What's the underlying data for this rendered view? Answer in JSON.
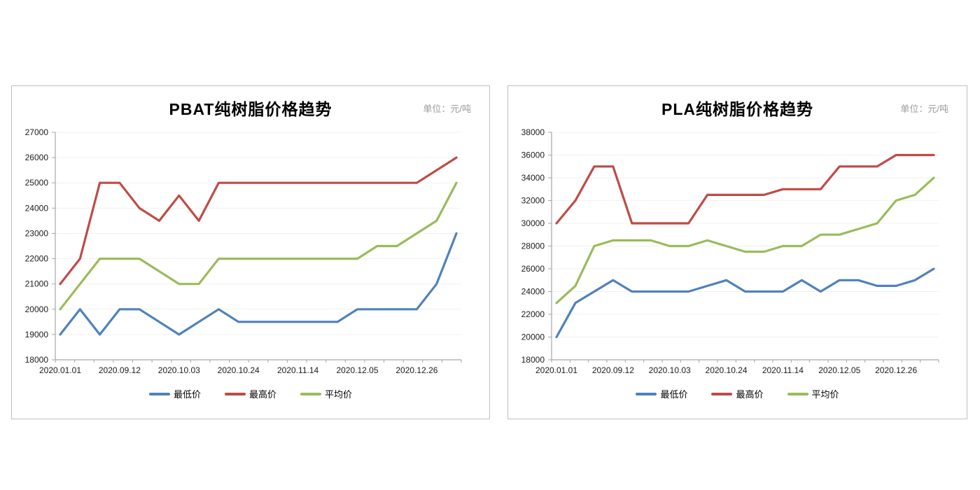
{
  "page": {
    "background_color": "#ffffff",
    "panel_border_color": "#bfbfbf"
  },
  "chart_data": [
    {
      "type": "line",
      "title": "PBAT纯树脂价格趋势",
      "unit_label": "单位：元/吨",
      "ylim": [
        18000,
        27000
      ],
      "ytick_step": 1000,
      "n_points": 21,
      "x_label_every_n_points": 3,
      "x_tick_labels": [
        "2020.01.01",
        "2020.09.12",
        "2020.10.03",
        "2020.10.24",
        "2020.11.14",
        "2020.12.05",
        "2020.12.26"
      ],
      "grid": true,
      "legend_position": "bottom",
      "series": [
        {
          "name": "最低价",
          "color": "#4f81bd",
          "values": [
            19000,
            20000,
            19000,
            20000,
            20000,
            19500,
            19000,
            19500,
            20000,
            19500,
            19500,
            19500,
            19500,
            19500,
            19500,
            20000,
            20000,
            20000,
            20000,
            21000,
            23000
          ]
        },
        {
          "name": "最高价",
          "color": "#be4b48",
          "values": [
            21000,
            22000,
            25000,
            25000,
            24000,
            23500,
            24500,
            23500,
            25000,
            25000,
            25000,
            25000,
            25000,
            25000,
            25000,
            25000,
            25000,
            25000,
            25000,
            25500,
            26000
          ]
        },
        {
          "name": "平均价",
          "color": "#9bbb59",
          "values": [
            20000,
            21000,
            22000,
            22000,
            22000,
            21500,
            21000,
            21000,
            22000,
            22000,
            22000,
            22000,
            22000,
            22000,
            22000,
            22000,
            22500,
            22500,
            23000,
            23500,
            25000
          ]
        }
      ]
    },
    {
      "type": "line",
      "title": "PLA纯树脂价格趋势",
      "unit_label": "单位：元/吨",
      "ylim": [
        18000,
        38000
      ],
      "ytick_step": 2000,
      "n_points": 21,
      "x_label_every_n_points": 3,
      "x_tick_labels": [
        "2020.01.01",
        "2020.09.12",
        "2020.10.03",
        "2020.10.24",
        "2020.11.14",
        "2020.12.05",
        "2020.12.26"
      ],
      "grid": true,
      "legend_position": "bottom",
      "series": [
        {
          "name": "最低价",
          "color": "#4f81bd",
          "values": [
            20000,
            23000,
            24000,
            25000,
            24000,
            24000,
            24000,
            24000,
            24500,
            25000,
            24000,
            24000,
            24000,
            25000,
            24000,
            25000,
            25000,
            24500,
            24500,
            25000,
            26000
          ]
        },
        {
          "name": "最高价",
          "color": "#be4b48",
          "values": [
            30000,
            32000,
            35000,
            35000,
            30000,
            30000,
            30000,
            30000,
            32500,
            32500,
            32500,
            32500,
            33000,
            33000,
            33000,
            35000,
            35000,
            35000,
            36000,
            36000,
            36000
          ]
        },
        {
          "name": "平均价",
          "color": "#9bbb59",
          "values": [
            23000,
            24500,
            28000,
            28500,
            28500,
            28500,
            28000,
            28000,
            28500,
            28000,
            27500,
            27500,
            28000,
            28000,
            29000,
            29000,
            29500,
            30000,
            32000,
            32500,
            34000
          ]
        }
      ]
    }
  ],
  "style": {
    "axis_color": "#a6a6a6",
    "gridline_color": "#f0f0f0",
    "tick_label_color": "#1a1a1a"
  }
}
